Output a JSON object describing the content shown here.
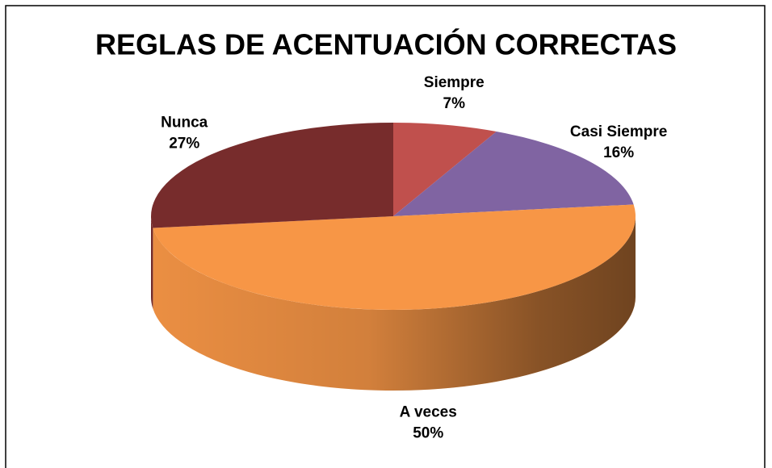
{
  "chart_data": {
    "type": "pie",
    "title": "REGLAS DE ACENTUACIÓN CORRECTAS",
    "categories": [
      "Siempre",
      "Casi Siempre",
      "A veces",
      "Nunca"
    ],
    "values": [
      7,
      16,
      50,
      27
    ],
    "value_labels": [
      "7%",
      "16%",
      "50%",
      "27%"
    ],
    "colors": [
      "#c0504d",
      "#8064a2",
      "#f79646",
      "#772c2c"
    ]
  }
}
